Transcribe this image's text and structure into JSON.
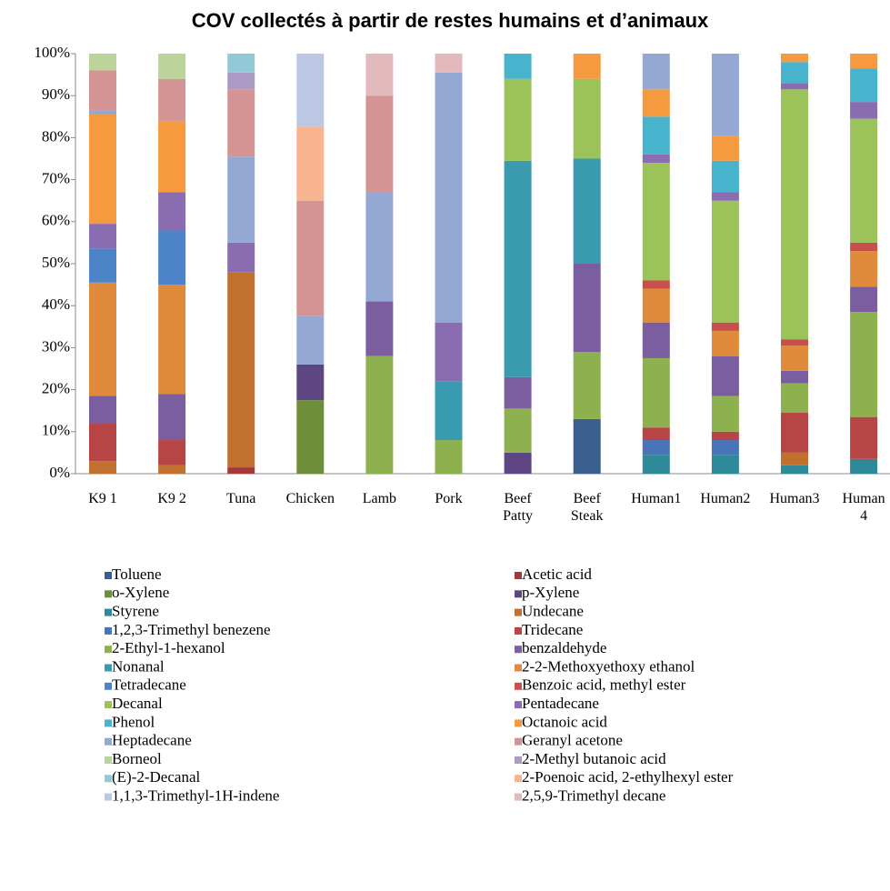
{
  "chart_data": {
    "type": "stacked_bar",
    "title": "COV collectés à partir de restes humains et d’animaux",
    "categories": [
      "K9 1",
      "K9 2",
      "Tuna",
      "Chicken",
      "Lamb",
      "Pork",
      "Beef Patty",
      "Beef Steak",
      "Human1",
      "Human2",
      "Human3",
      "Human 4"
    ],
    "ylim": [
      0,
      100
    ],
    "yticks": [
      {
        "value": 0,
        "label": "0%"
      },
      {
        "value": 10,
        "label": "10%"
      },
      {
        "value": 20,
        "label": "20%"
      },
      {
        "value": 30,
        "label": "30%"
      },
      {
        "value": 40,
        "label": "40%"
      },
      {
        "value": 50,
        "label": "50%"
      },
      {
        "value": 60,
        "label": "60%"
      },
      {
        "value": 70,
        "label": "70%"
      },
      {
        "value": 80,
        "label": "80%"
      },
      {
        "value": 90,
        "label": "90%"
      },
      {
        "value": 100,
        "label": "100%"
      }
    ],
    "grid": false,
    "series": [
      {
        "name": "Toluene",
        "color": "#3a5f8f",
        "values": [
          0,
          0,
          0,
          0,
          0,
          0,
          0,
          13,
          0,
          0,
          0,
          0
        ]
      },
      {
        "name": "Acetic acid",
        "color": "#a33a3a",
        "values": [
          0,
          0,
          1.5,
          0,
          0,
          0,
          0,
          0,
          0,
          0,
          0,
          0
        ]
      },
      {
        "name": "o-Xylene",
        "color": "#6e8f3a",
        "values": [
          0,
          0,
          0,
          17.5,
          0,
          0,
          0,
          0,
          0,
          0,
          0,
          0
        ]
      },
      {
        "name": "p-Xylene",
        "color": "#5e4684",
        "values": [
          0,
          0,
          0,
          8.5,
          0,
          0,
          5,
          0,
          0,
          0,
          0,
          0
        ]
      },
      {
        "name": "Styrene",
        "color": "#2e8a99",
        "values": [
          0,
          0,
          0,
          0,
          0,
          0,
          0,
          0,
          4.5,
          4.5,
          2,
          3.5
        ]
      },
      {
        "name": "Undecane",
        "color": "#c0702f",
        "values": [
          3,
          2,
          46.5,
          0,
          0,
          0,
          0,
          0,
          0,
          0,
          3,
          0
        ]
      },
      {
        "name": "1,2,3-Trimethyl benezene",
        "color": "#4a74b8",
        "values": [
          0,
          0,
          0,
          0,
          0,
          0,
          0,
          0,
          3.5,
          3.5,
          0,
          0
        ]
      },
      {
        "name": "Tridecane",
        "color": "#b84545",
        "values": [
          9,
          6,
          0,
          0,
          0,
          0,
          0,
          0,
          3,
          2,
          9.5,
          10
        ]
      },
      {
        "name": "2-Ethyl-1-hexanol",
        "color": "#8db14e",
        "values": [
          0,
          0,
          0,
          0,
          28,
          8,
          10.5,
          16,
          16.5,
          8.5,
          7,
          25
        ]
      },
      {
        "name": "benzaldehyde",
        "color": "#7a5ea0",
        "values": [
          6.5,
          11,
          0,
          0,
          13,
          0,
          7.5,
          21,
          8.5,
          9.5,
          3,
          6
        ]
      },
      {
        "name": "Nonanal",
        "color": "#3a9bb0",
        "values": [
          0,
          0,
          0,
          0,
          0,
          14,
          51.5,
          25,
          0,
          0,
          0,
          0
        ]
      },
      {
        "name": "2-2-Methoxyethoxy ethanol",
        "color": "#e08a3c",
        "values": [
          27,
          26,
          0,
          0,
          0,
          0,
          0,
          0,
          8,
          6,
          6,
          8.5
        ]
      },
      {
        "name": "Tetradecane",
        "color": "#4d84c8",
        "values": [
          8,
          13,
          0,
          0,
          0,
          0,
          0,
          0,
          0,
          0,
          0,
          0
        ]
      },
      {
        "name": "Benzoic acid, methyl ester",
        "color": "#c94f4f",
        "values": [
          0,
          0,
          0,
          0,
          0,
          0,
          0,
          0,
          2,
          2,
          1.5,
          2
        ]
      },
      {
        "name": "Decanal",
        "color": "#9cc35a",
        "values": [
          0,
          0,
          0,
          0,
          0,
          0,
          19.5,
          19,
          28,
          29,
          59.5,
          29.5
        ]
      },
      {
        "name": "Pentadecane",
        "color": "#8a6cb0",
        "values": [
          6,
          9,
          7,
          0,
          0,
          14,
          0,
          0,
          2,
          2,
          1.5,
          4
        ]
      },
      {
        "name": "Phenol",
        "color": "#47b3cc",
        "values": [
          0,
          0,
          0,
          0,
          0,
          0,
          6,
          0,
          9,
          7.5,
          5,
          8
        ]
      },
      {
        "name": "Octanoic acid",
        "color": "#f59a3f",
        "values": [
          26,
          17,
          0,
          0,
          0,
          0,
          0,
          6,
          6.5,
          6,
          2,
          3.5
        ]
      },
      {
        "name": "Heptadecane",
        "color": "#94a8d4",
        "values": [
          1,
          0,
          20.5,
          11.5,
          26,
          59.5,
          0,
          0,
          8.5,
          19.5,
          0,
          0
        ]
      },
      {
        "name": "Geranyl acetone",
        "color": "#d49494",
        "values": [
          9.5,
          10,
          16,
          27.5,
          23,
          0,
          0,
          0,
          0,
          0,
          0,
          0
        ]
      },
      {
        "name": "Borneol",
        "color": "#bcd49a",
        "values": [
          4,
          6,
          0,
          0,
          0,
          0,
          0,
          0,
          0,
          0,
          0,
          0
        ]
      },
      {
        "name": "2-Methyl butanoic acid",
        "color": "#ab9ac4",
        "values": [
          0,
          0,
          4,
          0,
          0,
          0,
          0,
          0,
          0,
          0,
          0,
          0
        ]
      },
      {
        "name": "(E)-2-Decanal",
        "color": "#93c8d6",
        "values": [
          0,
          0,
          4.5,
          0,
          0,
          0,
          0,
          0,
          0,
          0,
          0,
          0
        ]
      },
      {
        "name": "2-Poenoic acid, 2-ethylhexyl ester",
        "color": "#f8b48e",
        "values": [
          0,
          0,
          0,
          17.5,
          0,
          0,
          0,
          0,
          0,
          0,
          0,
          0
        ]
      },
      {
        "name": "1,1,3-Trimethyl-1H-indene",
        "color": "#bcc8e3",
        "values": [
          0,
          0,
          0,
          17.5,
          0,
          0,
          0,
          0,
          0,
          0,
          0,
          0
        ]
      },
      {
        "name": "2,5,9-Trimethyl decane",
        "color": "#e2b9bc",
        "values": [
          0,
          0,
          0,
          0,
          10,
          4.5,
          0,
          0,
          0,
          0,
          0,
          0
        ]
      }
    ]
  }
}
